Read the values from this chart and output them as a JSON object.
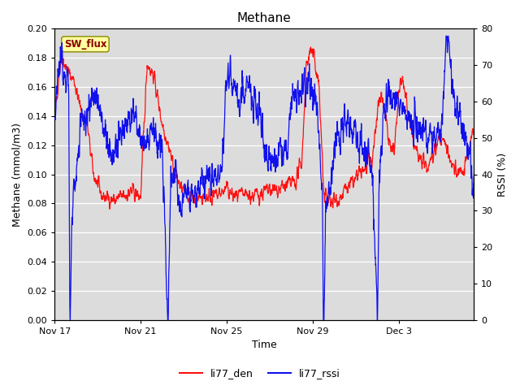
{
  "title": "Methane",
  "xlabel": "Time",
  "ylabel_left": "Methane (mmol/m3)",
  "ylabel_right": "RSSI (%)",
  "ylim_left": [
    0.0,
    0.2
  ],
  "ylim_right": [
    0,
    80
  ],
  "yticks_left": [
    0.0,
    0.02,
    0.04,
    0.06,
    0.08,
    0.1,
    0.12,
    0.14,
    0.16,
    0.18,
    0.2
  ],
  "yticks_right": [
    0,
    10,
    20,
    30,
    40,
    50,
    60,
    70,
    80
  ],
  "color_red": "#FF1010",
  "color_blue": "#1010EE",
  "bg_color": "#DCDCDC",
  "legend_label_red": "li77_den",
  "legend_label_blue": "li77_rssi",
  "sw_flux_label": "SW_flux",
  "sw_flux_bg": "#FFFFA0",
  "sw_flux_border": "#888800",
  "sw_flux_text_color": "#880000",
  "xtick_labels": [
    "Nov 17",
    "Nov 21",
    "Nov 25",
    "Nov 29",
    "Dec 3"
  ],
  "xtick_positions": [
    0,
    4,
    8,
    12,
    16
  ],
  "xlim_days": 19.5,
  "seed": 42
}
